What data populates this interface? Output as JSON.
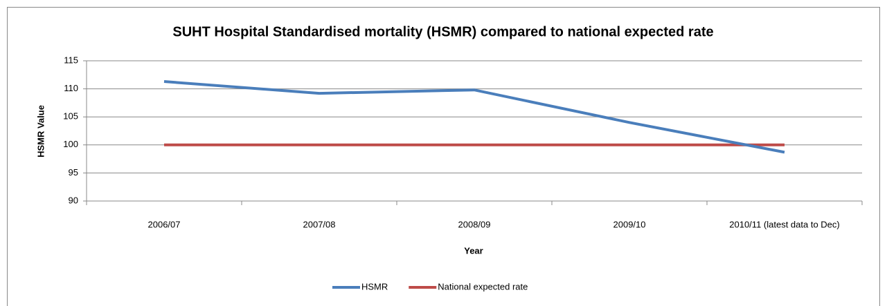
{
  "chart_data": {
    "type": "line",
    "title": "SUHT Hospital Standardised mortality (HSMR) compared to national expected rate",
    "x_label": "Year",
    "y_label": "HSMR Value",
    "categories": [
      "2006/07",
      "2007/08",
      "2008/09",
      "2009/10",
      "2010/11 (latest data to Dec)"
    ],
    "series": [
      {
        "name": "HSMR",
        "color": "#4a7ebb",
        "values": [
          111.3,
          109.2,
          109.8,
          104,
          98.7
        ]
      },
      {
        "name": "National expected rate",
        "color": "#be4b48",
        "values": [
          100,
          100,
          100,
          100,
          100
        ]
      }
    ],
    "ylim": [
      90,
      115
    ],
    "yticks": [
      90,
      95,
      100,
      105,
      110,
      115
    ],
    "grid": true,
    "legend": "bottom"
  }
}
